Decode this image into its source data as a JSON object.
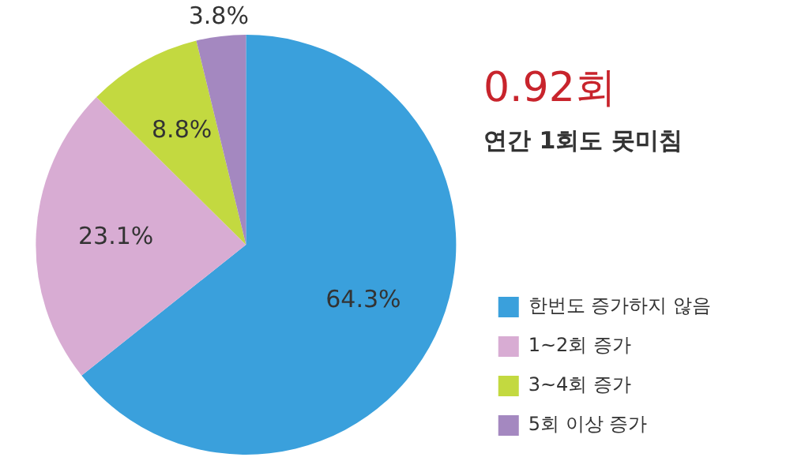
{
  "chart_data": {
    "type": "pie",
    "title": "0.92회",
    "subtitle": "연간 1회도 못미침",
    "categories": [
      "한번도 증가하지 않음",
      "1~2회 증가",
      "3~4회 증가",
      "5회 이상 증가"
    ],
    "values": [
      64.3,
      23.1,
      8.8,
      3.8
    ],
    "colors": [
      "#3aa0dc",
      "#d8acd3",
      "#c3d940",
      "#a488c0"
    ],
    "value_labels": [
      "64.3%",
      "23.1%",
      "8.8%",
      "3.8%"
    ],
    "legend": "right"
  }
}
